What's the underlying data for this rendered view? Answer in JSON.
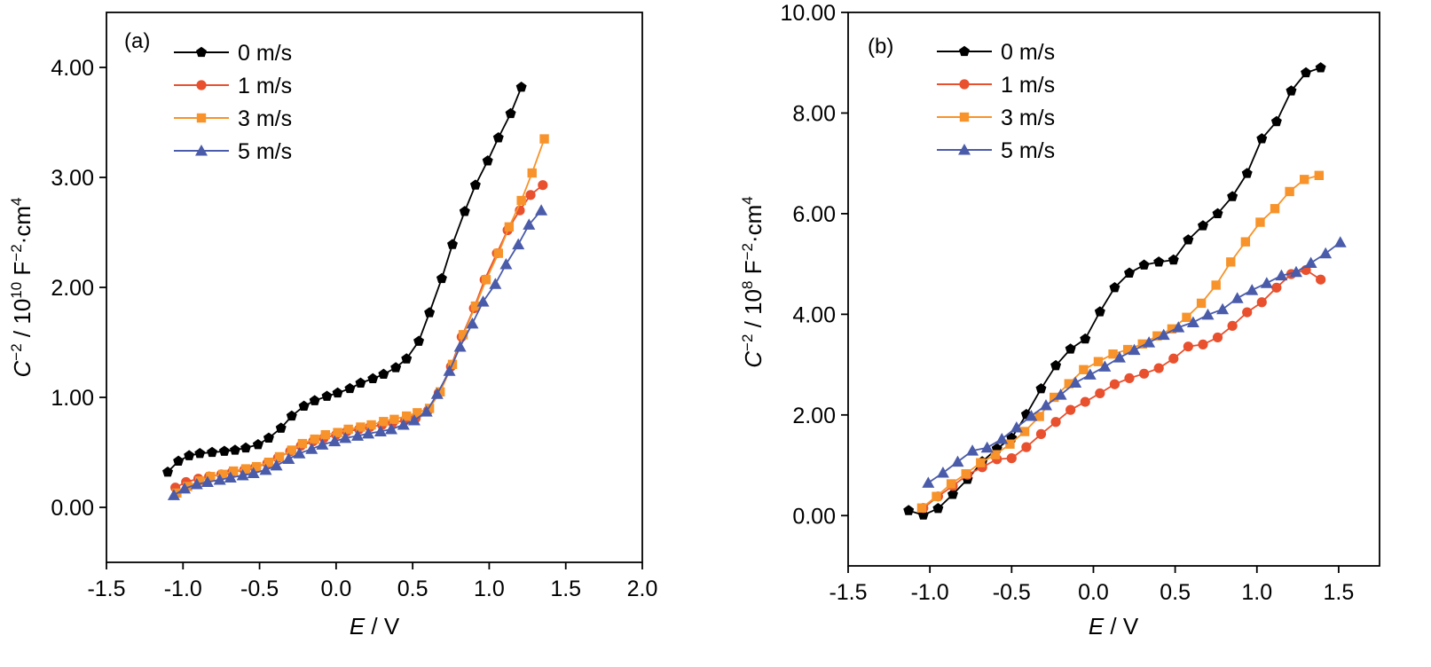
{
  "chart_data": [
    {
      "type": "line",
      "panel_label": "(a)",
      "xlabel_var": "E",
      "xlabel_unit": " / V",
      "ylabel_var": "C",
      "ylabel_unit": "−2 / 1010 F−2·cm4",
      "ylabel_parts": {
        "sup1": "−2",
        "mid1": " / 10",
        "sup2": "10",
        "mid2": " F",
        "sup3": "−2",
        "mid3": "·cm",
        "sup4": "4"
      },
      "xlim": [
        -1.5,
        2.0
      ],
      "ylim": [
        -0.5,
        4.5
      ],
      "xticks": [
        "-1.5",
        "-1.0",
        "-0.5",
        "0.0",
        "0.5",
        "1.0",
        "1.5",
        "2.0"
      ],
      "yticks": [
        "0.00",
        "1.00",
        "2.00",
        "3.00",
        "4.00"
      ],
      "legend_position": "top-left",
      "grid": false,
      "series": [
        {
          "name": "0 m/s",
          "color": "#000000",
          "marker": "pentagon",
          "x": [
            -1.1,
            -1.03,
            -0.96,
            -0.89,
            -0.81,
            -0.73,
            -0.66,
            -0.59,
            -0.51,
            -0.44,
            -0.36,
            -0.29,
            -0.21,
            -0.14,
            -0.06,
            0.01,
            0.09,
            0.16,
            0.24,
            0.31,
            0.39,
            0.46,
            0.54,
            0.61,
            0.69,
            0.76,
            0.84,
            0.91,
            0.99,
            1.06,
            1.14,
            1.21,
            1.29,
            1.36,
            1.44,
            1.5
          ],
          "y": [
            0.32,
            0.42,
            0.47,
            0.49,
            0.5,
            0.51,
            0.52,
            0.54,
            0.57,
            0.63,
            0.72,
            0.83,
            0.92,
            0.97,
            1.01,
            1.04,
            1.08,
            1.13,
            1.17,
            1.21,
            1.27,
            1.35,
            1.51,
            1.77,
            2.08,
            2.39,
            2.69,
            2.93,
            3.15,
            3.36,
            3.58,
            3.82,
            null,
            null,
            null,
            null
          ]
        },
        {
          "name": "1 m/s",
          "color": "#E8502E",
          "marker": "circle",
          "x": [
            -1.05,
            -0.98,
            -0.9,
            -0.83,
            -0.75,
            -0.68,
            -0.6,
            -0.53,
            -0.45,
            -0.38,
            -0.3,
            -0.23,
            -0.15,
            -0.08,
            0.0,
            0.07,
            0.15,
            0.22,
            0.3,
            0.37,
            0.45,
            0.52,
            0.6,
            0.67,
            0.75,
            0.82,
            0.9,
            0.97,
            1.05,
            1.12,
            1.2,
            1.27,
            1.35,
            1.42,
            1.5,
            1.57
          ],
          "y": [
            0.18,
            0.23,
            0.26,
            0.28,
            0.3,
            0.32,
            0.34,
            0.36,
            0.4,
            0.45,
            0.51,
            0.56,
            0.6,
            0.63,
            0.66,
            0.69,
            0.71,
            0.73,
            0.75,
            0.77,
            0.79,
            0.81,
            0.88,
            1.04,
            1.28,
            1.55,
            1.81,
            2.07,
            2.31,
            2.52,
            2.7,
            2.84,
            2.93,
            null,
            null,
            null
          ]
        },
        {
          "name": "3 m/s",
          "color": "#F7932A",
          "marker": "square",
          "x": [
            -1.04,
            -0.97,
            -0.89,
            -0.82,
            -0.74,
            -0.67,
            -0.59,
            -0.52,
            -0.44,
            -0.37,
            -0.29,
            -0.22,
            -0.14,
            -0.07,
            0.01,
            0.08,
            0.16,
            0.23,
            0.31,
            0.38,
            0.46,
            0.53,
            0.61,
            0.68,
            0.76,
            0.83,
            0.91,
            0.98,
            1.06,
            1.13,
            1.21,
            1.28,
            1.36,
            1.43,
            1.5,
            1.56
          ],
          "y": [
            0.13,
            0.19,
            0.24,
            0.28,
            0.3,
            0.33,
            0.35,
            0.37,
            0.41,
            0.46,
            0.52,
            0.58,
            0.62,
            0.66,
            0.68,
            0.71,
            0.73,
            0.75,
            0.78,
            0.8,
            0.83,
            0.86,
            0.9,
            1.05,
            1.3,
            1.57,
            1.83,
            2.07,
            2.31,
            2.55,
            2.79,
            3.04,
            3.35,
            null,
            null,
            null
          ]
        },
        {
          "name": "5 m/s",
          "color": "#4A5BAA",
          "marker": "triangle",
          "x": [
            -1.06,
            -0.99,
            -0.91,
            -0.84,
            -0.76,
            -0.69,
            -0.61,
            -0.54,
            -0.46,
            -0.39,
            -0.31,
            -0.24,
            -0.16,
            -0.09,
            -0.01,
            0.06,
            0.14,
            0.21,
            0.29,
            0.36,
            0.44,
            0.51,
            0.59,
            0.66,
            0.74,
            0.81,
            0.89,
            0.96,
            1.04,
            1.11,
            1.19,
            1.26,
            1.34,
            1.41,
            1.48,
            1.55
          ],
          "y": [
            0.11,
            0.17,
            0.21,
            0.23,
            0.25,
            0.27,
            0.29,
            0.31,
            0.34,
            0.38,
            0.44,
            0.49,
            0.53,
            0.57,
            0.6,
            0.63,
            0.65,
            0.67,
            0.69,
            0.71,
            0.75,
            0.79,
            0.87,
            1.03,
            1.24,
            1.46,
            1.67,
            1.87,
            2.03,
            2.21,
            2.39,
            2.57,
            2.7,
            null,
            null,
            null
          ]
        }
      ]
    },
    {
      "type": "line",
      "panel_label": "(b)",
      "xlabel_var": "E",
      "xlabel_unit": " / V",
      "ylabel_var": "C",
      "ylabel_unit": "−2 / 108 F−2·cm4",
      "ylabel_parts": {
        "sup1": "−2",
        "mid1": " / 10",
        "sup2": "8",
        "mid2": " F",
        "sup3": "−2",
        "mid3": "·cm",
        "sup4": "4"
      },
      "xlim": [
        -1.5,
        1.75
      ],
      "ylim": [
        -1.0,
        10.0
      ],
      "xticks": [
        "-1.5",
        "-1.0",
        "-0.5",
        "0.0",
        "0.5",
        "1.0",
        "1.5"
      ],
      "yticks": [
        "0.00",
        "2.00",
        "4.00",
        "6.00",
        "8.00",
        "10.00"
      ],
      "legend_position": "top-left",
      "grid": false,
      "series": [
        {
          "name": "0 m/s",
          "color": "#000000",
          "marker": "pentagon",
          "x": [
            -1.13,
            -1.04,
            -0.95,
            -0.86,
            -0.77,
            -0.68,
            -0.59,
            -0.5,
            -0.41,
            -0.32,
            -0.23,
            -0.14,
            -0.05,
            0.04,
            0.13,
            0.22,
            0.31,
            0.4,
            0.49,
            0.58,
            0.67,
            0.76,
            0.85,
            0.94,
            1.03,
            1.12,
            1.21,
            1.3,
            1.39,
            1.46
          ],
          "y": [
            0.1,
            0.01,
            0.14,
            0.42,
            0.72,
            1.07,
            1.33,
            1.54,
            2.01,
            2.52,
            2.98,
            3.31,
            3.51,
            4.05,
            4.53,
            4.82,
            4.98,
            5.04,
            5.08,
            5.48,
            5.76,
            6.0,
            6.34,
            6.8,
            7.49,
            7.83,
            8.44,
            8.8,
            8.9,
            null
          ]
        },
        {
          "name": "1 m/s",
          "color": "#E8502E",
          "marker": "circle",
          "x": [
            -1.04,
            -0.95,
            -0.86,
            -0.77,
            -0.68,
            -0.59,
            -0.5,
            -0.41,
            -0.32,
            -0.23,
            -0.14,
            -0.05,
            0.04,
            0.13,
            0.22,
            0.31,
            0.4,
            0.49,
            0.58,
            0.67,
            0.76,
            0.85,
            0.94,
            1.03,
            1.12,
            1.21,
            1.3,
            1.39,
            1.47,
            1.54
          ],
          "y": [
            0.15,
            0.38,
            0.59,
            0.81,
            0.96,
            1.12,
            1.14,
            1.36,
            1.62,
            1.86,
            2.1,
            2.26,
            2.43,
            2.61,
            2.73,
            2.82,
            2.93,
            3.12,
            3.36,
            3.4,
            3.54,
            3.77,
            4.04,
            4.24,
            4.53,
            4.8,
            4.88,
            4.69,
            null,
            null
          ]
        },
        {
          "name": "3 m/s",
          "color": "#F7932A",
          "marker": "square",
          "x": [
            -1.05,
            -0.96,
            -0.87,
            -0.78,
            -0.69,
            -0.6,
            -0.51,
            -0.42,
            -0.33,
            -0.24,
            -0.15,
            -0.06,
            0.03,
            0.12,
            0.21,
            0.3,
            0.39,
            0.48,
            0.57,
            0.66,
            0.75,
            0.84,
            0.93,
            1.02,
            1.11,
            1.2,
            1.29,
            1.38,
            1.47,
            1.56
          ],
          "y": [
            0.15,
            0.38,
            0.63,
            0.83,
            1.05,
            1.21,
            1.42,
            1.67,
            1.97,
            2.35,
            2.62,
            2.9,
            3.06,
            3.21,
            3.3,
            3.41,
            3.57,
            3.71,
            3.94,
            4.22,
            4.58,
            5.04,
            5.44,
            5.83,
            6.1,
            6.44,
            6.68,
            6.76,
            null,
            null
          ]
        },
        {
          "name": "5 m/s",
          "color": "#4A5BAA",
          "marker": "triangle",
          "x": [
            -1.01,
            -0.92,
            -0.83,
            -0.74,
            -0.65,
            -0.56,
            -0.47,
            -0.38,
            -0.29,
            -0.2,
            -0.11,
            -0.02,
            0.07,
            0.16,
            0.25,
            0.34,
            0.43,
            0.52,
            0.61,
            0.7,
            0.79,
            0.88,
            0.97,
            1.06,
            1.15,
            1.24,
            1.33,
            1.42,
            1.51,
            1.6
          ],
          "y": [
            0.65,
            0.85,
            1.07,
            1.29,
            1.35,
            1.52,
            1.75,
            1.98,
            2.19,
            2.4,
            2.64,
            2.8,
            2.96,
            3.14,
            3.29,
            3.44,
            3.59,
            3.74,
            3.84,
            3.99,
            4.1,
            4.32,
            4.48,
            4.62,
            4.77,
            4.84,
            5.02,
            5.21,
            5.43,
            null
          ]
        }
      ]
    }
  ]
}
